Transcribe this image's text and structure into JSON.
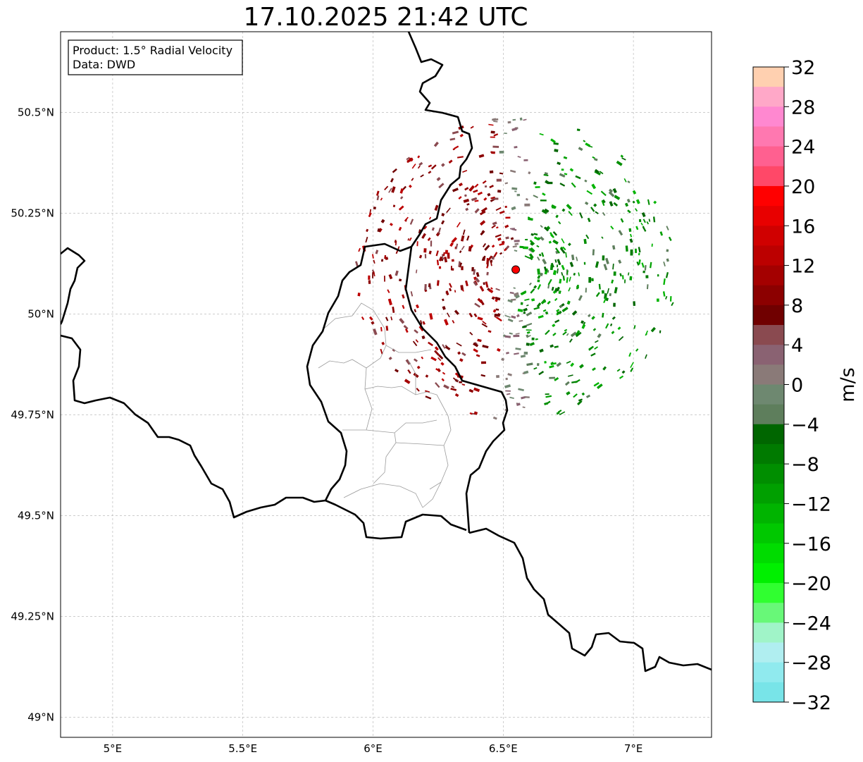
{
  "title": "17.10.2025 21:42 UTC",
  "info_box": {
    "product": "Product: 1.5° Radial Velocity",
    "data": "Data: DWD"
  },
  "map": {
    "lon_range": [
      4.8,
      7.3
    ],
    "lat_range": [
      48.95,
      50.7
    ],
    "lon_ticks": [
      {
        "value": 5.0,
        "label": "5°E"
      },
      {
        "value": 5.5,
        "label": "5.5°E"
      },
      {
        "value": 6.0,
        "label": "6°E"
      },
      {
        "value": 6.5,
        "label": "6.5°E"
      },
      {
        "value": 7.0,
        "label": "7°E"
      }
    ],
    "lat_ticks": [
      {
        "value": 49.0,
        "label": "49°N"
      },
      {
        "value": 49.25,
        "label": "49.25°N"
      },
      {
        "value": 49.5,
        "label": "49.5°N"
      },
      {
        "value": 49.75,
        "label": "49.75°N"
      },
      {
        "value": 50.0,
        "label": "50°N"
      },
      {
        "value": 50.25,
        "label": "50.25°N"
      },
      {
        "value": 50.5,
        "label": "50.5°N"
      }
    ],
    "gridlines": true,
    "radar_site": {
      "lon": 6.548,
      "lat": 50.11,
      "color": "#ff0000"
    }
  },
  "colorbar": {
    "unit": "m/s",
    "range": [
      -32,
      32
    ],
    "ticks": [
      32,
      28,
      24,
      20,
      16,
      12,
      8,
      4,
      0,
      -4,
      -8,
      -12,
      -16,
      -20,
      -24,
      -28,
      -32
    ],
    "tick_labels": [
      "32",
      "28",
      "24",
      "20",
      "16",
      "12",
      "8",
      "4",
      "0",
      "−04",
      "−8",
      "−12",
      "−16",
      "−20",
      "−24",
      "−28",
      "−32"
    ],
    "colors_top_to_bottom": [
      "#ffd0b0",
      "#ffa8c8",
      "#ff88d0",
      "#ff78b0",
      "#ff6090",
      "#ff4868",
      "#ff0000",
      "#e80000",
      "#d00000",
      "#bc0000",
      "#a40000",
      "#8c0000",
      "#700000",
      "#8a4a50",
      "#8a6272",
      "#8a7a78",
      "#6e8870",
      "#5e7e5c",
      "#006600",
      "#007a00",
      "#008e00",
      "#00a000",
      "#00b400",
      "#00c800",
      "#00dc00",
      "#00f000",
      "#30ff30",
      "#68f878",
      "#a0f4c8",
      "#b0eef0",
      "#90eaee",
      "#78e4e8"
    ]
  }
}
